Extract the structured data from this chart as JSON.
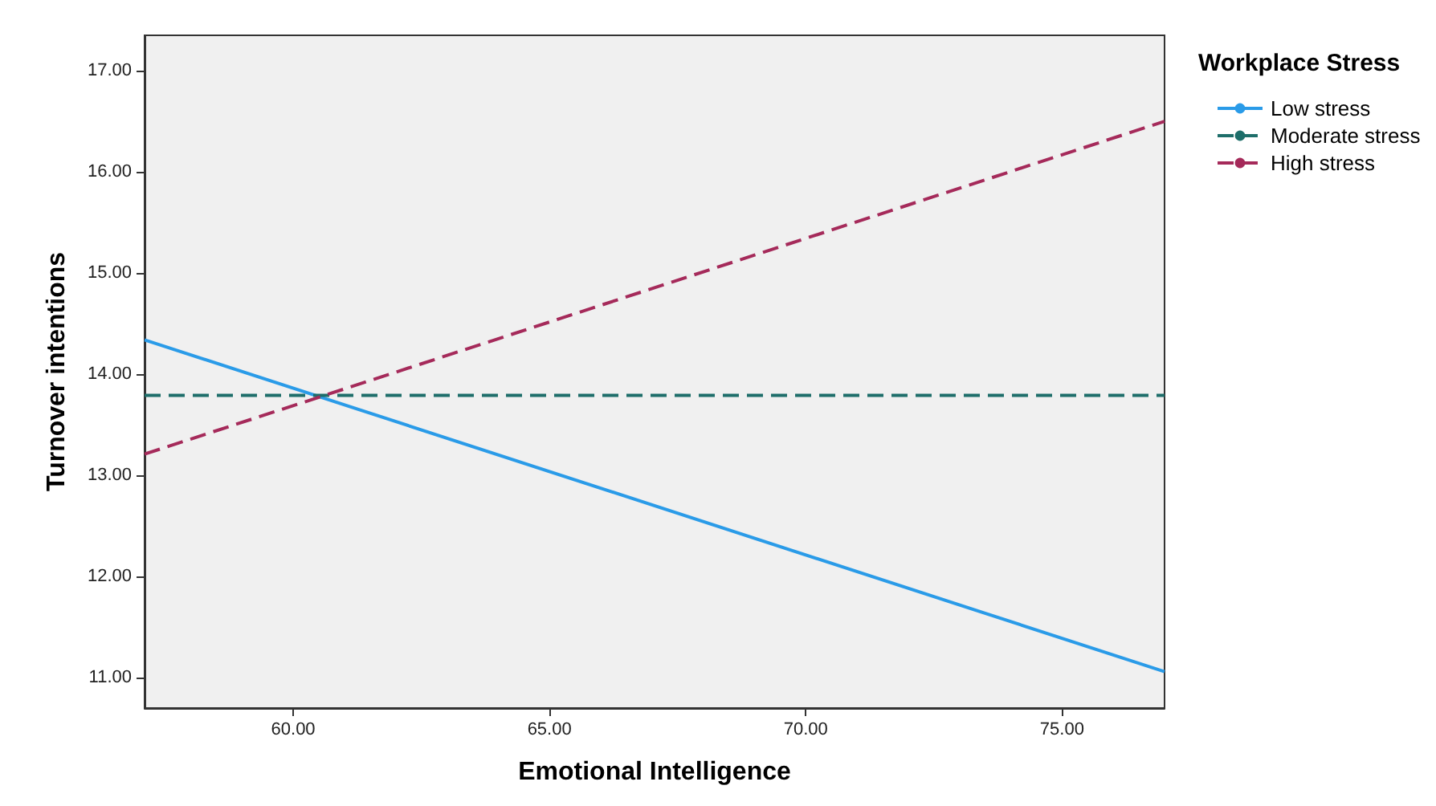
{
  "chart_data": {
    "type": "line",
    "xlabel": "Emotional Intelligence",
    "ylabel": "Turnover intentions",
    "legend_title": "Workplace Stress",
    "x": [
      57.1,
      77.0
    ],
    "series": [
      {
        "name": "Low stress",
        "color": "#2a9be8",
        "line_style": "solid",
        "values": [
          14.34,
          11.06
        ]
      },
      {
        "name": "Moderate stress",
        "color": "#1e6e6a",
        "line_style": "dashed",
        "values": [
          13.79,
          13.79
        ]
      },
      {
        "name": "High stress",
        "color": "#a52a5a",
        "line_style": "dashed",
        "values": [
          13.21,
          16.5
        ]
      }
    ],
    "xlim": [
      57.1,
      77.0
    ],
    "xticks": [
      {
        "value": 60,
        "label": "60.00"
      },
      {
        "value": 65,
        "label": "65.00"
      },
      {
        "value": 70,
        "label": "70.00"
      },
      {
        "value": 75,
        "label": "75.00"
      }
    ],
    "ylim": [
      10.7,
      17.35
    ],
    "yticks": [
      {
        "value": 11,
        "label": "11.00"
      },
      {
        "value": 12,
        "label": "12.00"
      },
      {
        "value": 13,
        "label": "13.00"
      },
      {
        "value": 14,
        "label": "14.00"
      },
      {
        "value": 15,
        "label": "15.00"
      },
      {
        "value": 16,
        "label": "16.00"
      },
      {
        "value": 17,
        "label": "17.00"
      }
    ],
    "grid": false,
    "legend": "top right",
    "marker": "none"
  }
}
